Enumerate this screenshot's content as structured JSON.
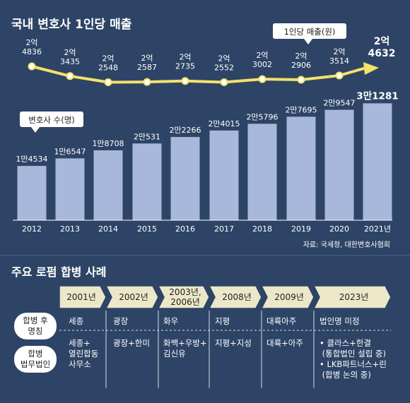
{
  "chart_data": [
    {
      "type": "line",
      "title": "국내 변호사 1인당 매출",
      "series_label": "1인당 매출(원)",
      "categories": [
        "2012",
        "2013",
        "2014",
        "2015",
        "2016",
        "2017",
        "2018",
        "2019",
        "2020",
        "2021년"
      ],
      "value_labels": [
        [
          "2억",
          "4836"
        ],
        [
          "2억",
          "3435"
        ],
        [
          "2억",
          "2548"
        ],
        [
          "2억",
          "2587"
        ],
        [
          "2억",
          "2735"
        ],
        [
          "2억",
          "2552"
        ],
        [
          "2억",
          "3002"
        ],
        [
          "2억",
          "2906"
        ],
        [
          "2억",
          "3514"
        ],
        [
          "2억",
          "4632"
        ]
      ],
      "values": [
        248360000,
        234350000,
        225480000,
        225870000,
        227350000,
        225520000,
        230020000,
        229060000,
        235140000,
        246320000
      ]
    },
    {
      "type": "bar",
      "series_label": "변호사 수(명)",
      "categories": [
        "2012",
        "2013",
        "2014",
        "2015",
        "2016",
        "2017",
        "2018",
        "2019",
        "2020",
        "2021년"
      ],
      "value_labels": [
        "1만4534",
        "1만6547",
        "1만8708",
        "2만531",
        "2만2266",
        "2만4015",
        "2만5796",
        "2만7695",
        "2만9547",
        "3만1281"
      ],
      "values": [
        14534,
        16547,
        18708,
        20531,
        22266,
        24015,
        25796,
        27695,
        29547,
        31281
      ],
      "source": "자료: 국세청, 대한변호사협회"
    }
  ],
  "merger": {
    "title": "주요 로펌 합병 사례",
    "years": [
      "2001년",
      "2002년",
      "2003년,\n2006년",
      "2008년",
      "2009년",
      "2023년"
    ],
    "row_labels": [
      "합병 후\n명칭",
      "합병\n법무법인"
    ],
    "names": [
      "세종",
      "광장",
      "화우",
      "지평",
      "대륙아주",
      "법인명 미정"
    ],
    "firms": [
      "세종+\n열린합동\n사무소",
      "광장+한미",
      "화백+우방+\n김신유",
      "지평+지성",
      "대륙+아주",
      "• 클라스+한결\n  (통합법인 설립 중)\n• LKB파트너스+린\n  (합병 논의 중)"
    ]
  },
  "colors": {
    "bg": "#2e4466",
    "bar": "#a8b8da",
    "line": "#f3e26a",
    "arrow": "#ece7c8",
    "white": "#ffffff"
  }
}
